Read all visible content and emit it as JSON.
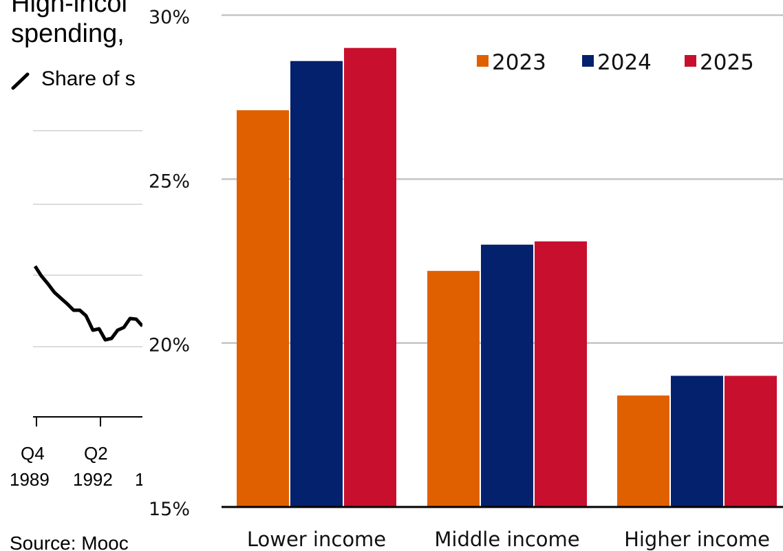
{
  "background_chart": {
    "title_line1": "High-incol",
    "title_line2": "spending,",
    "legend_label": "Share of s",
    "x_ticks": [
      {
        "quarter": "Q4",
        "year": "1989"
      },
      {
        "quarter": "Q2",
        "year": "1992"
      },
      {
        "quarter": "",
        "year": "1"
      }
    ],
    "source": "Source: Mooc",
    "line_color": "#000000"
  },
  "chart_data": {
    "type": "bar",
    "title": "",
    "categories": [
      "Lower income",
      "Middle income",
      "Higher income"
    ],
    "series": [
      {
        "name": "2023",
        "color": "#E06000",
        "values": [
          27.1,
          22.2,
          18.4
        ]
      },
      {
        "name": "2024",
        "color": "#04216E",
        "values": [
          28.6,
          23.0,
          19.0
        ]
      },
      {
        "name": "2025",
        "color": "#C8102E",
        "values": [
          29.0,
          23.1,
          19.0
        ]
      }
    ],
    "y_ticks": [
      "15%",
      "20%",
      "25%",
      "30%"
    ],
    "ylim": [
      15,
      30
    ],
    "grid": true,
    "legend_position": "top-right"
  }
}
